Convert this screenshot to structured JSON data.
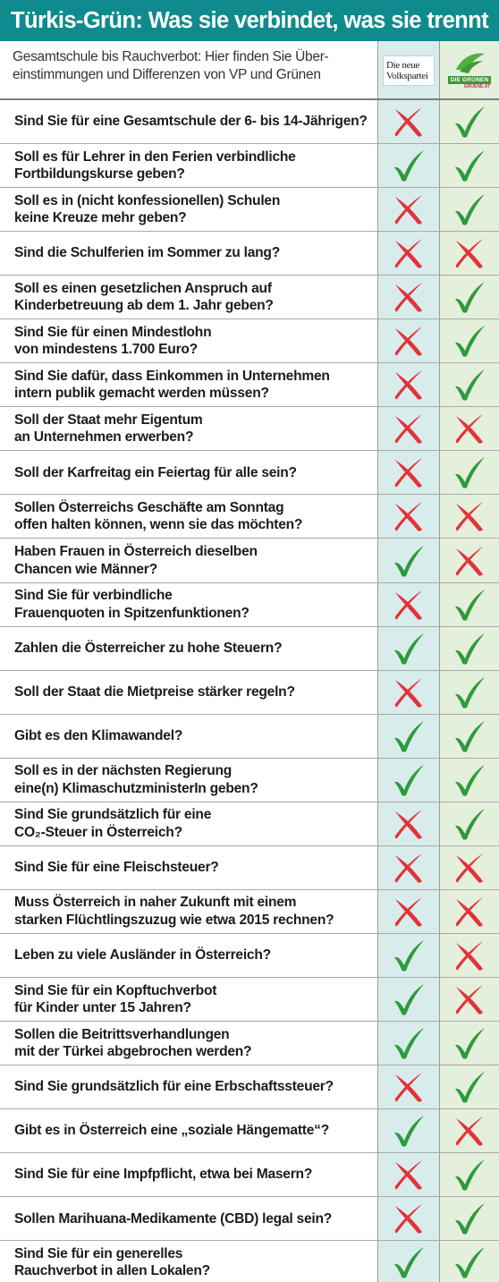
{
  "title": "Türkis-Grün: Was sie verbindet, was sie trennt",
  "subtitle": "Gesamtschule bis Rauchverbot: Hier finden Sie Über-\neinstimmungen und Differenzen von VP und Grünen",
  "logos": {
    "vp_line1": "Die neue",
    "vp_line2": "Volkspartei",
    "gr_name": "DIE GRÜNEN",
    "gr_url": "GRUENE.AT"
  },
  "colors": {
    "title_bg": "#0f8b8d",
    "vp_column": "#d9ecec",
    "gr_column": "#e4efdc",
    "check": "#2f9a3c",
    "cross": "#e2333a"
  },
  "rows": [
    {
      "q": "Sind Sie für eine Gesamtschule der 6- bis 14-Jährigen?",
      "vp": "no",
      "gr": "yes"
    },
    {
      "q": "Soll es für Lehrer in den Ferien verbindliche\nFortbildungskurse geben?",
      "vp": "yes",
      "gr": "yes"
    },
    {
      "q": "Soll es in (nicht konfessionellen) Schulen\nkeine Kreuze mehr geben?",
      "vp": "no",
      "gr": "yes"
    },
    {
      "q": "Sind die Schulferien im Sommer zu lang?",
      "vp": "no",
      "gr": "no"
    },
    {
      "q": "Soll es einen gesetzlichen Anspruch auf\nKinderbetreuung ab dem 1. Jahr geben?",
      "vp": "no",
      "gr": "yes"
    },
    {
      "q": "Sind Sie für einen Mindestlohn\nvon mindestens 1.700 Euro?",
      "vp": "no",
      "gr": "yes"
    },
    {
      "q": "Sind Sie dafür, dass Einkommen in Unternehmen\nintern publik gemacht werden müssen?",
      "vp": "no",
      "gr": "yes"
    },
    {
      "q": "Soll der Staat mehr Eigentum\nan Unternehmen erwerben?",
      "vp": "no",
      "gr": "no"
    },
    {
      "q": "Soll der Karfreitag ein Feiertag für alle sein?",
      "vp": "no",
      "gr": "yes"
    },
    {
      "q": "Sollen Österreichs Geschäfte am Sonntag\noffen halten können, wenn sie das möchten?",
      "vp": "no",
      "gr": "no"
    },
    {
      "q": "Haben Frauen in Österreich dieselben\nChancen wie Männer?",
      "vp": "yes",
      "gr": "no"
    },
    {
      "q": "Sind Sie für verbindliche\nFrauenquoten in Spitzenfunktionen?",
      "vp": "no",
      "gr": "yes"
    },
    {
      "q": "Zahlen die Österreicher zu hohe Steuern?",
      "vp": "yes",
      "gr": "yes"
    },
    {
      "q": "Soll der Staat die Mietpreise stärker regeln?",
      "vp": "no",
      "gr": "yes"
    },
    {
      "q": "Gibt es den Klimawandel?",
      "vp": "yes",
      "gr": "yes"
    },
    {
      "q": "Soll es in der nächsten Regierung\neine(n) KlimaschutzministerIn geben?",
      "vp": "yes",
      "gr": "yes"
    },
    {
      "q": "Sind Sie grundsätzlich für eine\nCO₂-Steuer in Österreich?",
      "vp": "no",
      "gr": "yes"
    },
    {
      "q": "Sind Sie für eine Fleischsteuer?",
      "vp": "no",
      "gr": "no"
    },
    {
      "q": "Muss Österreich in naher Zukunft mit einem\nstarken Flüchtlingszuzug wie etwa 2015 rechnen?",
      "vp": "no",
      "gr": "no"
    },
    {
      "q": "Leben zu viele Ausländer in Österreich?",
      "vp": "yes",
      "gr": "no"
    },
    {
      "q": "Sind Sie für ein Kopftuchverbot\nfür Kinder unter 15 Jahren?",
      "vp": "yes",
      "gr": "no"
    },
    {
      "q": "Sollen die Beitrittsverhandlungen\nmit der Türkei abgebrochen werden?",
      "vp": "yes",
      "gr": "yes"
    },
    {
      "q": "Sind Sie grundsätzlich für eine Erbschaftssteuer?",
      "vp": "no",
      "gr": "yes"
    },
    {
      "q": "Gibt es in Österreich eine „soziale Hängematte“?",
      "vp": "yes",
      "gr": "no"
    },
    {
      "q": "Sind Sie für eine Impfpflicht, etwa bei Masern?",
      "vp": "no",
      "gr": "yes"
    },
    {
      "q": "Sollen Marihuana-Medikamente (CBD) legal sein?",
      "vp": "no",
      "gr": "yes"
    },
    {
      "q": "Sind Sie für ein generelles\nRauchverbot in allen Lokalen?",
      "vp": "yes",
      "gr": "yes"
    }
  ]
}
